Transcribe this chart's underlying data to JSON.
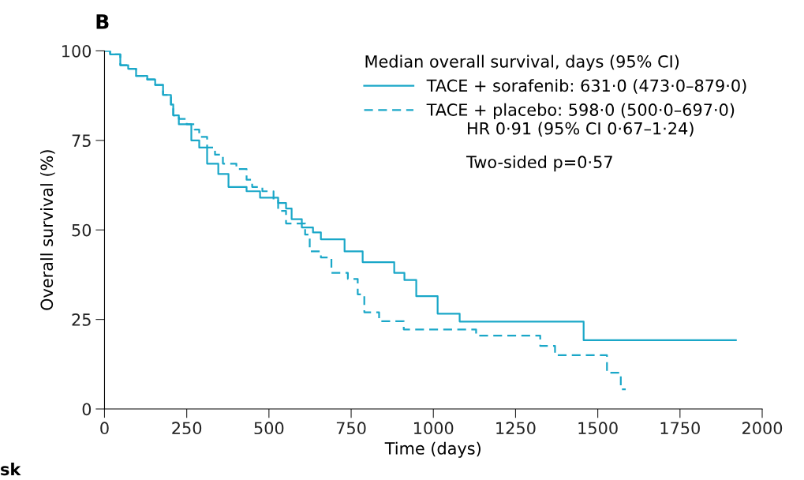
{
  "chart_data": {
    "type": "step",
    "title": "B",
    "xlabel": "Time (days)",
    "ylabel": "Overall survival (%)",
    "legend_title": "Median overall survival, days (95% CI)",
    "legend": "top right",
    "grid": false,
    "xlim": [
      0,
      2000
    ],
    "ylim": [
      0,
      100
    ],
    "xticks": [
      0,
      250,
      500,
      750,
      1000,
      1250,
      1500,
      1750,
      2000
    ],
    "yticks": [
      0,
      25,
      50,
      75,
      100
    ],
    "series": [
      {
        "name": "TACE + sorafenib: 631·0 (473·0–879·0)",
        "color": "#1aa7c8",
        "line_style": "solid",
        "x": [
          0,
          17,
          48,
          72,
          96,
          130,
          154,
          178,
          202,
          209,
          226,
          264,
          288,
          312,
          346,
          377,
          432,
          473,
          528,
          552,
          569,
          600,
          634,
          658,
          730,
          785,
          792,
          881,
          912,
          948,
          1013,
          1080,
          1457,
          1920
        ],
        "values": [
          100,
          99,
          96,
          95,
          93,
          92,
          90.5,
          87.7,
          85,
          82,
          79.5,
          75,
          73,
          68.5,
          65.6,
          62,
          60.8,
          59,
          57.5,
          56,
          53,
          50.7,
          49.3,
          47.4,
          44,
          41,
          41,
          38,
          36,
          31.5,
          26.6,
          24.4,
          19.2,
          19.2
        ]
      },
      {
        "name": "TACE + placebo: 598·0 (500·0–697·0)",
        "color": "#1aa7c8",
        "line_style": "dashed",
        "x": [
          0,
          17,
          48,
          72,
          96,
          130,
          154,
          178,
          202,
          209,
          226,
          250,
          274,
          288,
          312,
          336,
          360,
          401,
          432,
          449,
          480,
          514,
          528,
          552,
          610,
          624,
          658,
          690,
          740,
          770,
          790,
          835,
          910,
          975,
          1130,
          1325,
          1370,
          1528,
          1570,
          1585
        ],
        "values": [
          100,
          99,
          96,
          95,
          93,
          92,
          90.5,
          87.7,
          85,
          82,
          81,
          79.5,
          78,
          76,
          73,
          71,
          68.5,
          67,
          64,
          62,
          60.8,
          58.5,
          55.3,
          51.8,
          48.7,
          44,
          42.3,
          38,
          36.3,
          32,
          27,
          24.5,
          22.2,
          22.2,
          20.5,
          17.6,
          15,
          10.1,
          5.5,
          5.5
        ]
      }
    ],
    "annotations": [
      "HR 0·91 (95% CI 0·67–1·24)",
      "Two-sided p=0·57",
      "sk"
    ]
  }
}
